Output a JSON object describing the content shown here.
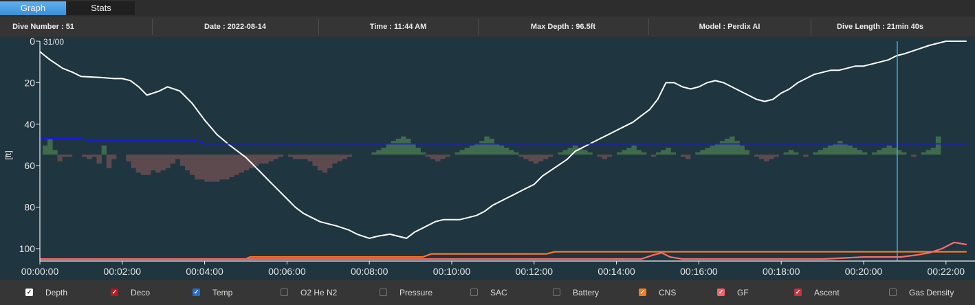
{
  "tabs": [
    {
      "label": "Graph",
      "active": true
    },
    {
      "label": "Stats",
      "active": false
    }
  ],
  "info": {
    "dive_number": "Dive Number : 51",
    "date": "Date : 2022-08-14",
    "time": "Time : 11:44 AM",
    "max_depth": "Max Depth : 96.5ft",
    "model": "Model : Perdix AI",
    "dive_length": "Dive Length : 21min 40s"
  },
  "chart": {
    "ylabel": "[ft]",
    "gas_label": "31/00",
    "colors": {
      "background": "#1f3540",
      "depth": "#ffffff",
      "temp": "#1a1ae6",
      "cns": "#ff7a1a",
      "gf": "#ff6b6b",
      "cursor": "#36b6e8",
      "ascent_up": "#3f6b4c",
      "ascent_down": "#5c4a4e"
    }
  },
  "legend": [
    {
      "label": "Depth",
      "checked": true,
      "color": "#ffffff"
    },
    {
      "label": "Deco",
      "checked": true,
      "color": "#c0151d"
    },
    {
      "label": "Temp",
      "checked": true,
      "color": "#1f6fd6"
    },
    {
      "label": "O2 He N2",
      "checked": false,
      "color": ""
    },
    {
      "label": "Pressure",
      "checked": false,
      "color": ""
    },
    {
      "label": "SAC",
      "checked": false,
      "color": ""
    },
    {
      "label": "Battery",
      "checked": false,
      "color": ""
    },
    {
      "label": "CNS",
      "checked": true,
      "color": "#ff7a1a"
    },
    {
      "label": "GF",
      "checked": true,
      "color": "#ff5f66"
    },
    {
      "label": "Ascent",
      "checked": true,
      "color": "#c8323a"
    },
    {
      "label": "Gas Density",
      "checked": false,
      "color": ""
    }
  ],
  "chart_data": {
    "type": "line",
    "ylabel": "[ft]",
    "xlabel": "",
    "ylim": [
      0,
      105
    ],
    "xlim": [
      "00:00:00",
      "00:22:30"
    ],
    "x_ticks": [
      "00:00:00",
      "00:02:00",
      "00:04:00",
      "00:06:00",
      "00:08:00",
      "00:10:00",
      "00:12:00",
      "00:14:00",
      "00:16:00",
      "00:18:00",
      "00:20:00",
      "00:22:00"
    ],
    "y_ticks": [
      "0",
      "20",
      "40",
      "60",
      "80",
      "100"
    ],
    "cursor_time": "00:20:49",
    "series": [
      {
        "name": "Depth",
        "x": [
          0,
          0.12,
          0.25,
          0.4,
          0.55,
          0.8,
          1.0,
          1.5,
          1.8,
          2.0,
          2.2,
          2.4,
          2.6,
          2.9,
          3.1,
          3.4,
          3.7,
          4.0,
          4.3,
          4.6,
          5.0,
          5.3,
          5.6,
          5.8,
          6.0,
          6.2,
          6.4,
          6.6,
          6.8,
          7.0,
          7.2,
          7.5,
          7.7,
          8.0,
          8.2,
          8.5,
          8.7,
          8.9,
          9.1,
          9.3,
          9.6,
          9.8,
          10.0,
          10.2,
          10.4,
          10.6,
          10.8,
          11.0,
          11.3,
          11.5,
          11.7,
          12.0,
          12.2,
          12.5,
          12.8,
          13.0,
          13.3,
          13.6,
          13.9,
          14.2,
          14.4,
          14.6,
          14.8,
          15.0,
          15.2,
          15.4,
          15.6,
          15.8,
          16.0,
          16.2,
          16.4,
          16.6,
          16.8,
          17.0,
          17.2,
          17.4,
          17.6,
          17.8,
          18.0,
          18.2,
          18.4,
          18.6,
          18.8,
          19.0,
          19.2,
          19.4,
          19.6,
          19.8,
          20.0,
          20.2,
          20.4,
          20.6,
          20.8,
          21.0,
          21.3,
          21.6,
          21.8,
          22.0,
          22.2,
          22.5
        ],
        "y": [
          5,
          7,
          9,
          11,
          13,
          15,
          17,
          17.5,
          18,
          18,
          19,
          22,
          26,
          24,
          22,
          24,
          30,
          38,
          45,
          50,
          56,
          62,
          68,
          72,
          76,
          80,
          83,
          85,
          87,
          88,
          89,
          91,
          93,
          95,
          94,
          93,
          94,
          95,
          92,
          90,
          87,
          86,
          86,
          86,
          85,
          84,
          82,
          79,
          76,
          74,
          72,
          69,
          65,
          61,
          57,
          53,
          50,
          47,
          44,
          41,
          39,
          36,
          33,
          28,
          20,
          20,
          22,
          23,
          22,
          20,
          19,
          20,
          22,
          24,
          26,
          28,
          29,
          28,
          25,
          23,
          20,
          18,
          16,
          15,
          14,
          14,
          13,
          12,
          12,
          11,
          10,
          9,
          7,
          6,
          4,
          2,
          1,
          0,
          0,
          0
        ],
        "color": "#ffffff"
      },
      {
        "name": "Temp",
        "x": [
          0,
          1.0,
          1.2,
          3.8,
          4.0,
          22.5
        ],
        "y": [
          47,
          47,
          48,
          48,
          49.5,
          49.5
        ],
        "color": "#1a1ae6"
      },
      {
        "name": "CNS",
        "x": [
          0,
          5.0,
          5.1,
          9.3,
          9.5,
          12.3,
          12.5,
          22.5
        ],
        "y": [
          105,
          105,
          104,
          104,
          102.5,
          102.5,
          101.5,
          101.5
        ],
        "color": "#ff7a1a"
      },
      {
        "name": "GF",
        "x": [
          0,
          14.6,
          14.9,
          15.1,
          15.3,
          15.6,
          16.0,
          19.0,
          19.5,
          20.0,
          20.5,
          20.9,
          21.3,
          21.6,
          21.9,
          22.2,
          22.5
        ],
        "y": [
          105,
          105,
          103,
          102,
          104,
          105,
          105,
          105,
          104.5,
          104,
          104,
          104,
          103,
          102,
          100,
          97,
          98
        ],
        "color": "#ff6b6b"
      }
    ],
    "ascent_bars": [
      4,
      7,
      2,
      -3,
      -1,
      -1,
      0,
      0,
      -1,
      -2,
      -1,
      -4,
      4,
      -6,
      -2,
      0,
      0,
      -3,
      -6,
      -8,
      -9,
      -9,
      -7,
      -8,
      -7,
      -6,
      -4,
      -2,
      -5,
      -7,
      -9,
      -11,
      -11,
      -12,
      -12,
      -12,
      -11,
      -11,
      -10,
      -9,
      -8,
      -7,
      -6,
      -5,
      -4,
      -4,
      -3,
      -2,
      -1,
      0,
      -1,
      -2,
      -2,
      -2,
      -3,
      -5,
      -7,
      -8,
      -6,
      -4,
      -3,
      -2,
      -1,
      0,
      0,
      0,
      0,
      1,
      2,
      3,
      5,
      6,
      7,
      8,
      7,
      5,
      3,
      1,
      -1,
      -2,
      -3,
      -2,
      -1,
      0,
      1,
      2,
      3,
      4,
      5,
      6,
      8,
      7,
      5,
      4,
      3,
      2,
      1,
      -1,
      -2,
      -3,
      -4,
      -3,
      -2,
      -1,
      0,
      1,
      2,
      3,
      4,
      3,
      2,
      1,
      0,
      -1,
      -2,
      -1,
      0,
      1,
      2,
      3,
      4,
      2,
      1,
      0,
      -1,
      1,
      2,
      3,
      1,
      0,
      -1,
      -2,
      0,
      1,
      2,
      3,
      4,
      5,
      6,
      7,
      8,
      6,
      4,
      2,
      0,
      -1,
      -2,
      -3,
      -2,
      -1,
      0,
      1,
      2,
      1,
      0,
      -1,
      0,
      1,
      2,
      3,
      4,
      5,
      6,
      5,
      4,
      3,
      2,
      1,
      0,
      1,
      2,
      3,
      4,
      3,
      2,
      1,
      0,
      -1,
      0,
      1,
      2,
      3,
      8
    ]
  }
}
